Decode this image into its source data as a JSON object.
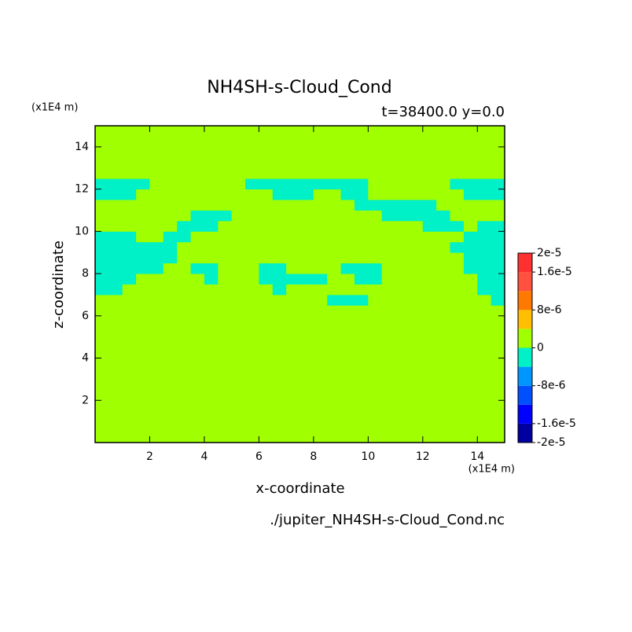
{
  "chart_data": {
    "type": "contour",
    "title": "NH4SH-s-Cloud_Cond",
    "subtitle": "t=38400.0 y=0.0",
    "x_label": "x-coordinate",
    "y_label": "z-coordinate",
    "x_unit": "(x1E4 m)",
    "y_unit": "(x1E4 m)",
    "source": "./jupiter_NH4SH-s-Cloud_Cond.nc",
    "xlim": [
      0,
      15
    ],
    "ylim": [
      0,
      15
    ],
    "xticks": [
      2,
      4,
      6,
      8,
      10,
      12,
      14
    ],
    "yticks": [
      2,
      4,
      6,
      8,
      10,
      12,
      14
    ],
    "x": [
      0.25,
      0.75,
      1.25,
      1.75,
      2.25,
      2.75,
      3.25,
      3.75,
      4.25,
      4.75,
      5.25,
      5.75,
      6.25,
      6.75,
      7.25,
      7.75,
      8.25,
      8.75,
      9.25,
      9.75,
      10.25,
      10.75,
      11.25,
      11.75,
      12.25,
      12.75,
      13.25,
      13.75,
      14.25,
      14.75
    ],
    "y": [
      0.25,
      0.75,
      1.25,
      1.75,
      2.25,
      2.75,
      3.25,
      3.75,
      4.25,
      4.75,
      5.25,
      5.75,
      6.25,
      6.75,
      7.25,
      7.75,
      8.25,
      8.75,
      9.25,
      9.75,
      10.25,
      10.75,
      11.25,
      11.75,
      12.25,
      12.75,
      13.25,
      13.75,
      14.25,
      14.75
    ],
    "z": [
      [
        0,
        0,
        0,
        0,
        0,
        0,
        0,
        0,
        0,
        0,
        0,
        0,
        0,
        0,
        0,
        0,
        0,
        0,
        0,
        0,
        0,
        0,
        0,
        0,
        0,
        0,
        0,
        0,
        0,
        0
      ],
      [
        0,
        0,
        0,
        0,
        0,
        0,
        0,
        0,
        0,
        0,
        0,
        0,
        0,
        0,
        0,
        0,
        0,
        0,
        0,
        0,
        0,
        0,
        0,
        0,
        0,
        0,
        0,
        0,
        0,
        0
      ],
      [
        0,
        0,
        0,
        0,
        0,
        0,
        0,
        0,
        0,
        0,
        0,
        0,
        0,
        0,
        0,
        0,
        0,
        0,
        0,
        0,
        0,
        0,
        0,
        0,
        0,
        0,
        0,
        0,
        0,
        0
      ],
      [
        0,
        0,
        0,
        0,
        0,
        0,
        0,
        0,
        0,
        0,
        0,
        0,
        0,
        0,
        0,
        0,
        0,
        0,
        0,
        0,
        0,
        0,
        0,
        0,
        0,
        0,
        0,
        0,
        0,
        0
      ],
      [
        0,
        0,
        0,
        0,
        0,
        0,
        0,
        0,
        0,
        0,
        0,
        0,
        0,
        0,
        0,
        0,
        0,
        0,
        0,
        0,
        0,
        0,
        0,
        0,
        0,
        0,
        0,
        0,
        0,
        0
      ],
      [
        0,
        0,
        0,
        0,
        0,
        0,
        0,
        0,
        0,
        0,
        0,
        0,
        0,
        0,
        0,
        0,
        0,
        0,
        0,
        0,
        0,
        0,
        0,
        0,
        0,
        0,
        0,
        0,
        0,
        0
      ],
      [
        0,
        0,
        0,
        0,
        0,
        0,
        0,
        0,
        0,
        0,
        0,
        0,
        0,
        0,
        0,
        0,
        0,
        0,
        0,
        0,
        0,
        0,
        0,
        0,
        0,
        0,
        0,
        0,
        0,
        0
      ],
      [
        0,
        0,
        0,
        0,
        0,
        0,
        0,
        0,
        0,
        0,
        0,
        0,
        0,
        0,
        0,
        0,
        0,
        0,
        0,
        0,
        0,
        0,
        0,
        0,
        0,
        0,
        0,
        0,
        0,
        0
      ],
      [
        0,
        0,
        0,
        0,
        0,
        0,
        0,
        0,
        0,
        0,
        0,
        0,
        0,
        0,
        0,
        0,
        0,
        0,
        0,
        0,
        0,
        0,
        0,
        0,
        0,
        0,
        0,
        0,
        0,
        0
      ],
      [
        0,
        0,
        0,
        0,
        0,
        0,
        0,
        0,
        0,
        0,
        0,
        0,
        0,
        0,
        0,
        0,
        0,
        0,
        0,
        0,
        0,
        0,
        0,
        0,
        0,
        0,
        0,
        0,
        0,
        0
      ],
      [
        0,
        0,
        0,
        0,
        0,
        0,
        0,
        0,
        0,
        0,
        0,
        0,
        0,
        0,
        0,
        0,
        0,
        0,
        0,
        0,
        0,
        0,
        0,
        0,
        0,
        0,
        0,
        0,
        0,
        0
      ],
      [
        0,
        0,
        0,
        0,
        0,
        0,
        0,
        0,
        0,
        0,
        0,
        0,
        0,
        0,
        0,
        0,
        0,
        0,
        0,
        0,
        0,
        0,
        0,
        0,
        0,
        0,
        0,
        0,
        0,
        0
      ],
      [
        0,
        0,
        0,
        0,
        0,
        0,
        0,
        0,
        0,
        0,
        0,
        0,
        0,
        0,
        0,
        0,
        0,
        0,
        0,
        0,
        0,
        0,
        0,
        0,
        0,
        0,
        0,
        0,
        0,
        0
      ],
      [
        0,
        0,
        0,
        0,
        0,
        0,
        0,
        0,
        0,
        0,
        0,
        0,
        0,
        0,
        0,
        0,
        0,
        -2e-06,
        -2e-06,
        -2e-06,
        0,
        0,
        0,
        0,
        0,
        0,
        0,
        0,
        0,
        -2e-06
      ],
      [
        -2e-06,
        -2e-06,
        0,
        0,
        0,
        0,
        0,
        0,
        0,
        0,
        0,
        0,
        0,
        -2e-06,
        0,
        0,
        0,
        0,
        0,
        0,
        0,
        0,
        0,
        0,
        0,
        0,
        0,
        0,
        -2e-06,
        -2e-06
      ],
      [
        -2e-06,
        -2e-06,
        -2e-06,
        0,
        0,
        0,
        0,
        0,
        -2e-06,
        0,
        0,
        0,
        -2e-06,
        -2e-06,
        -2e-06,
        -2e-06,
        -2e-06,
        0,
        0,
        -2e-06,
        -2e-06,
        0,
        0,
        0,
        0,
        0,
        0,
        0,
        -2e-06,
        -2e-06
      ],
      [
        -2e-06,
        -2e-06,
        -2e-06,
        -2e-06,
        -2e-06,
        0,
        0,
        -2e-06,
        -2e-06,
        0,
        0,
        0,
        -2e-06,
        -2e-06,
        0,
        0,
        0,
        0,
        -2e-06,
        -2e-06,
        -2e-06,
        0,
        0,
        0,
        0,
        0,
        0,
        -2e-06,
        -2e-06,
        -2e-06
      ],
      [
        -2e-06,
        -2e-06,
        -2e-06,
        -2e-06,
        -2e-06,
        -2e-06,
        0,
        0,
        0,
        0,
        0,
        0,
        0,
        0,
        0,
        0,
        0,
        0,
        0,
        0,
        0,
        0,
        0,
        0,
        0,
        0,
        0,
        -2e-06,
        -2e-06,
        -2e-06
      ],
      [
        -2e-06,
        -2e-06,
        -2e-06,
        -2e-06,
        -2e-06,
        -2e-06,
        0,
        0,
        0,
        0,
        0,
        0,
        0,
        0,
        0,
        0,
        0,
        0,
        0,
        0,
        0,
        0,
        0,
        0,
        0,
        0,
        -2e-06,
        -2e-06,
        -2e-06,
        -2e-06
      ],
      [
        -2e-06,
        -2e-06,
        -2e-06,
        0,
        0,
        -2e-06,
        -2e-06,
        0,
        0,
        0,
        0,
        0,
        0,
        0,
        0,
        0,
        0,
        0,
        0,
        0,
        0,
        0,
        0,
        0,
        0,
        0,
        0,
        -2e-06,
        -2e-06,
        -2e-06
      ],
      [
        0,
        0,
        0,
        0,
        0,
        0,
        -2e-06,
        -2e-06,
        -2e-06,
        0,
        0,
        0,
        0,
        0,
        0,
        0,
        0,
        0,
        0,
        0,
        0,
        0,
        0,
        0,
        -2e-06,
        -2e-06,
        -2e-06,
        0,
        -2e-06,
        -2e-06
      ],
      [
        0,
        0,
        0,
        0,
        0,
        0,
        0,
        -2e-06,
        -2e-06,
        -2e-06,
        0,
        0,
        0,
        0,
        0,
        0,
        0,
        0,
        0,
        0,
        0,
        -2e-06,
        -2e-06,
        -2e-06,
        -2e-06,
        -2e-06,
        0,
        0,
        0,
        0
      ],
      [
        0,
        0,
        0,
        0,
        0,
        0,
        0,
        0,
        0,
        0,
        0,
        0,
        0,
        0,
        0,
        0,
        0,
        0,
        0,
        -2e-06,
        -2e-06,
        -2e-06,
        -2e-06,
        -2e-06,
        -2e-06,
        0,
        0,
        0,
        0,
        0
      ],
      [
        -2e-06,
        -2e-06,
        -2e-06,
        0,
        0,
        0,
        0,
        0,
        0,
        0,
        0,
        0,
        0,
        -2e-06,
        -2e-06,
        -2e-06,
        0,
        0,
        -2e-06,
        -2e-06,
        0,
        0,
        0,
        0,
        0,
        0,
        0,
        -2e-06,
        -2e-06,
        -2e-06
      ],
      [
        -2e-06,
        -2e-06,
        -2e-06,
        -2e-06,
        0,
        0,
        0,
        0,
        0,
        0,
        0,
        -2e-06,
        -2e-06,
        -2e-06,
        -2e-06,
        -2e-06,
        -2e-06,
        -2e-06,
        -2e-06,
        -2e-06,
        0,
        0,
        0,
        0,
        0,
        0,
        -2e-06,
        -2e-06,
        -2e-06,
        -2e-06
      ],
      [
        0,
        0,
        0,
        0,
        0,
        0,
        0,
        0,
        0,
        0,
        0,
        0,
        0,
        0,
        0,
        0,
        0,
        0,
        0,
        0,
        0,
        0,
        0,
        0,
        0,
        0,
        0,
        0,
        0,
        0
      ],
      [
        0,
        0,
        0,
        0,
        0,
        0,
        0,
        0,
        0,
        0,
        0,
        0,
        0,
        0,
        0,
        0,
        0,
        0,
        0,
        0,
        0,
        0,
        0,
        0,
        0,
        0,
        0,
        0,
        0,
        0
      ],
      [
        0,
        0,
        0,
        0,
        0,
        0,
        0,
        0,
        0,
        0,
        0,
        0,
        0,
        0,
        0,
        0,
        0,
        0,
        0,
        0,
        0,
        0,
        0,
        0,
        0,
        0,
        0,
        0,
        0,
        0
      ],
      [
        0,
        0,
        0,
        0,
        0,
        0,
        0,
        0,
        0,
        0,
        0,
        0,
        0,
        0,
        0,
        0,
        0,
        0,
        0,
        0,
        0,
        0,
        0,
        0,
        0,
        0,
        0,
        0,
        0,
        0
      ],
      [
        0,
        0,
        0,
        0,
        0,
        0,
        0,
        0,
        0,
        0,
        0,
        0,
        0,
        0,
        0,
        0,
        0,
        0,
        0,
        0,
        0,
        0,
        0,
        0,
        0,
        0,
        0,
        0,
        0,
        0
      ]
    ],
    "levels": [
      -2e-05,
      -1.6e-05,
      -1.2e-05,
      -8e-06,
      -4e-06,
      0,
      4e-06,
      8e-06,
      1.2e-05,
      1.6e-05,
      2e-05
    ],
    "colors": [
      "#0000a0",
      "#0000ff",
      "#0050ff",
      "#0096ff",
      "#00f0c8",
      "#a0ff00",
      "#ffbe00",
      "#ff7800",
      "#ff5040",
      "#ff3030"
    ],
    "clim": [
      -2e-05,
      2e-05
    ],
    "cticks": [
      {
        "value": 2e-05,
        "label": "2e-5"
      },
      {
        "value": 1.6e-05,
        "label": "1.6e-5"
      },
      {
        "value": 8e-06,
        "label": "8e-6"
      },
      0,
      {
        "value": -8e-06,
        "label": "-8e-6"
      },
      {
        "value": -1.6e-05,
        "label": "-1.6e-5"
      },
      {
        "value": -2e-05,
        "label": "-2e-5"
      }
    ]
  }
}
